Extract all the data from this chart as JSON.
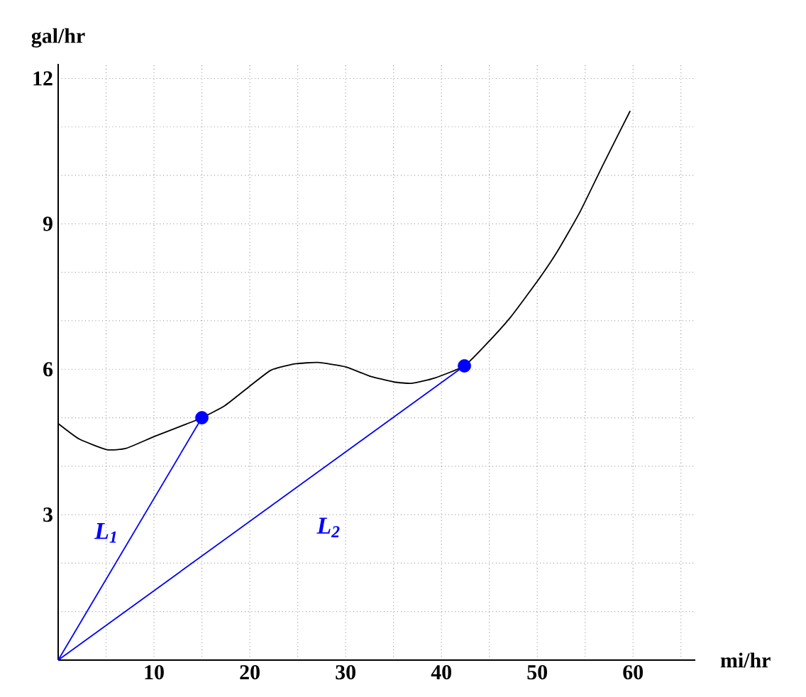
{
  "chart_data": {
    "type": "line",
    "xlabel": "mi/hr",
    "ylabel": "gal/hr",
    "xlim": [
      0,
      66.5
    ],
    "ylim": [
      0,
      12.3
    ],
    "xticks": [
      {
        "value": 5,
        "label": null
      },
      10,
      {
        "value": 15,
        "label": null
      },
      20,
      {
        "value": 25,
        "label": null
      },
      30,
      {
        "value": 35,
        "label": null
      },
      40,
      {
        "value": 45,
        "label": null
      },
      50,
      {
        "value": 55,
        "label": null
      },
      60,
      {
        "value": 65,
        "label": null
      }
    ],
    "yticks": [
      {
        "value": 1,
        "label": null
      },
      {
        "value": 2,
        "label": null
      },
      3,
      {
        "value": 4,
        "label": null
      },
      {
        "value": 5,
        "label": null
      },
      6,
      {
        "value": 7,
        "label": null
      },
      {
        "value": 8,
        "label": null
      },
      9,
      {
        "value": 10,
        "label": null
      },
      {
        "value": 11,
        "label": null
      },
      12
    ],
    "grid": true,
    "legend": false,
    "series": [
      {
        "color": "#000000",
        "x": [
          0,
          2.2,
          5.1,
          7.1,
          10,
          13,
          15,
          17.4,
          19.8,
          22.2,
          24.7,
          27.1,
          30,
          32.5,
          35,
          36.9,
          39.3,
          42.4,
          44.7,
          47.2,
          50.1,
          52.1,
          54.5,
          56.9,
          59.7
        ],
        "values": [
          4.88,
          4.56,
          4.34,
          4.37,
          4.61,
          4.84,
          5.0,
          5.25,
          5.62,
          5.98,
          6.11,
          6.14,
          6.05,
          5.86,
          5.74,
          5.71,
          5.82,
          6.07,
          6.52,
          7.07,
          7.84,
          8.43,
          9.26,
          10.23,
          11.33
        ]
      },
      {
        "name": "L$_{1}$",
        "color": "#0000ff",
        "x": [
          0,
          15
        ],
        "values": [
          0,
          5.0
        ]
      },
      {
        "name": "L$_{2}$",
        "color": "#0000ff",
        "x": [
          0,
          42.4
        ],
        "values": [
          0,
          6.07
        ]
      },
      {
        "type": "scatter",
        "marker": "circle",
        "color": "#0000ff",
        "x": [
          15,
          42.4
        ],
        "values": [
          5.0,
          6.07
        ]
      }
    ]
  }
}
